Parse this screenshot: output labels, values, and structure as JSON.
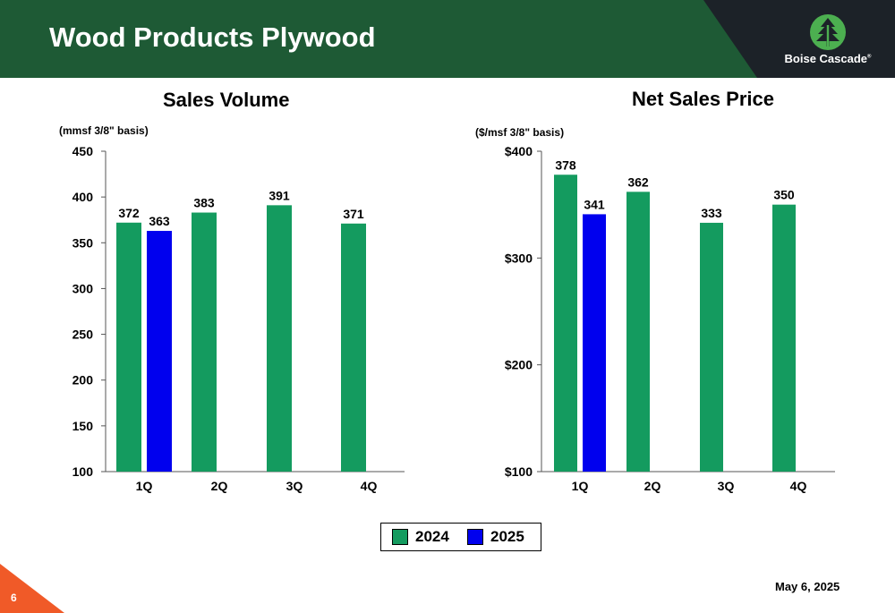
{
  "slide": {
    "title": "Wood Products Plywood",
    "logo_text": "Boise Cascade",
    "logo_mark": "®",
    "page_number": "6",
    "date": "May 6, 2025"
  },
  "colors": {
    "header": "#1e5a35",
    "header_dark": "#1c2228",
    "accent_orange": "#f05a28",
    "series_2024": "#149b5f",
    "series_2025": "#0000ee",
    "logo_green": "#4caf50"
  },
  "legend": [
    {
      "name": "2024",
      "color": "#149b5f"
    },
    {
      "name": "2025",
      "color": "#0000ee"
    }
  ],
  "chart_data": [
    {
      "type": "bar",
      "title": "Sales Volume",
      "ylabel": "(mmsf 3/8\" basis)",
      "categories": [
        "1Q",
        "2Q",
        "3Q",
        "4Q"
      ],
      "ylim": [
        100,
        450
      ],
      "yticks": [
        100,
        150,
        200,
        250,
        300,
        350,
        400,
        450
      ],
      "ytick_labels": [
        "100",
        "150",
        "200",
        "250",
        "300",
        "350",
        "400",
        "450"
      ],
      "series": [
        {
          "name": "2024",
          "values": [
            372,
            383,
            391,
            371
          ],
          "labels": [
            "372",
            "383",
            "391",
            "371"
          ]
        },
        {
          "name": "2025",
          "values": [
            363,
            null,
            null,
            null
          ],
          "labels": [
            "363",
            "",
            "",
            ""
          ]
        }
      ],
      "grid": false
    },
    {
      "type": "bar",
      "title": "Net Sales Price",
      "ylabel": "($/msf 3/8\" basis)",
      "categories": [
        "1Q",
        "2Q",
        "3Q",
        "4Q"
      ],
      "ylim": [
        100,
        400
      ],
      "yticks": [
        100,
        200,
        300,
        400
      ],
      "ytick_labels": [
        "$100",
        "$200",
        "$300",
        "$400"
      ],
      "series": [
        {
          "name": "2024",
          "values": [
            378,
            362,
            333,
            350
          ],
          "labels": [
            "378",
            "362",
            "333",
            "350"
          ]
        },
        {
          "name": "2025",
          "values": [
            341,
            null,
            null,
            null
          ],
          "labels": [
            "341",
            "",
            "",
            ""
          ]
        }
      ],
      "grid": false
    }
  ]
}
